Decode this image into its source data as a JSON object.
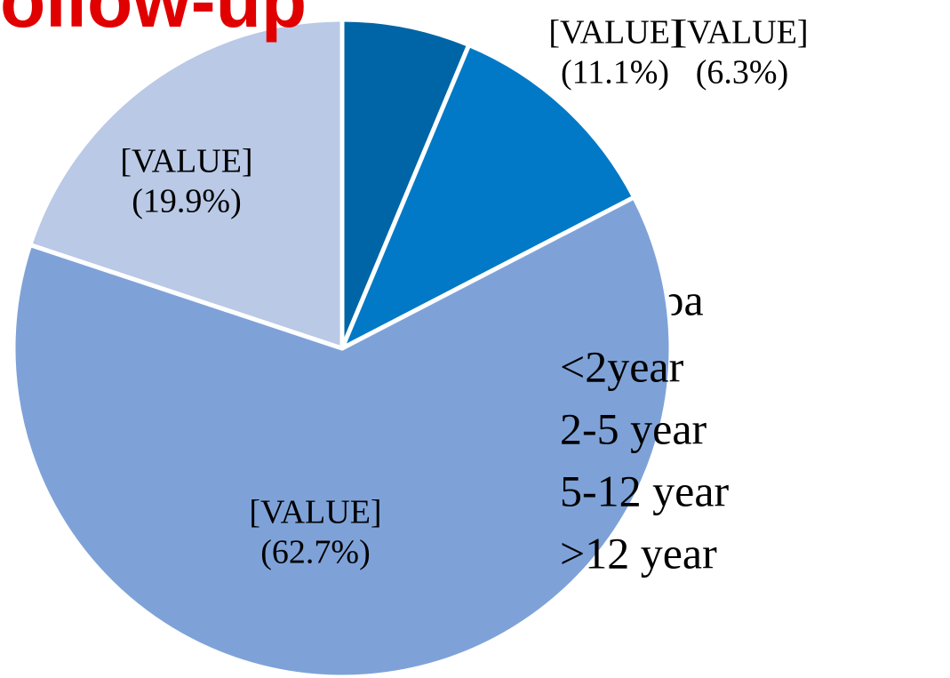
{
  "chart_data": {
    "type": "pie",
    "title": "ollow-up",
    "legend_title": "Total pa",
    "categories": [
      "<2year",
      "2-5 year",
      "5-12 year",
      ">12 year"
    ],
    "values": [
      6.3,
      11.1,
      62.7,
      19.9
    ],
    "value_labels": [
      "(6.3%)",
      "(11.1%)",
      "(62.7%)",
      "(19.9%)"
    ],
    "data_label_names": [
      "[VALUE]",
      "[VALUE]",
      "[VALUE]",
      "[VALUE]"
    ],
    "colors": [
      "#0065a6",
      "#0279c6",
      "#7ea2d8",
      "#b9c9e6"
    ]
  }
}
